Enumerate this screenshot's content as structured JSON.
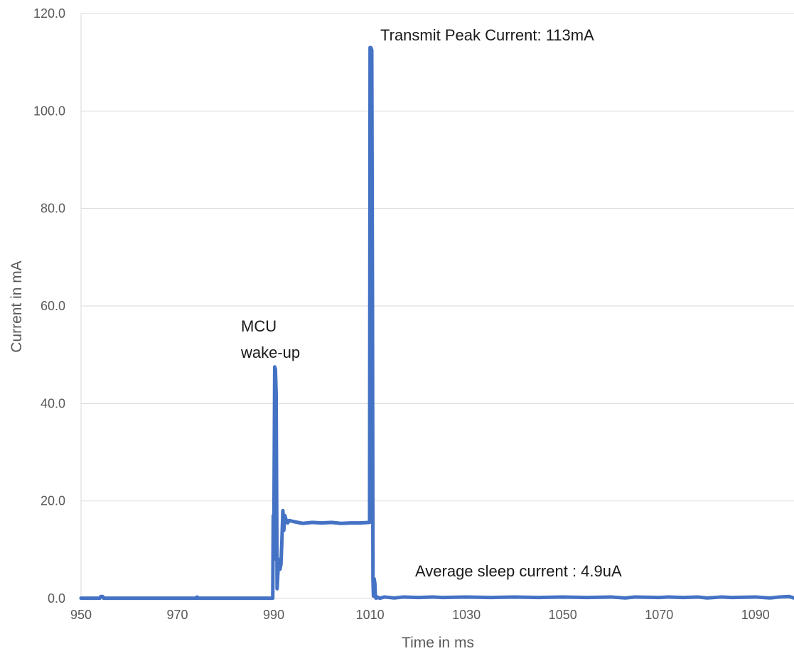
{
  "chart_data": {
    "type": "line",
    "xlabel": "Time in ms",
    "ylabel": "Current in mA",
    "xlim": [
      950,
      1098
    ],
    "ylim": [
      0,
      120
    ],
    "x_ticks": [
      950,
      970,
      990,
      1010,
      1030,
      1050,
      1070,
      1090
    ],
    "y_ticks": [
      "0.0",
      "20.0",
      "40.0",
      "60.0",
      "80.0",
      "100.0",
      "120.0"
    ],
    "y_tick_values": [
      0,
      20,
      40,
      60,
      80,
      100,
      120
    ],
    "grid": "horizontal",
    "series": [
      {
        "color": "#4472C4",
        "x": [
          950,
          953.9,
          954.1,
          954.5,
          954.7,
          973.9,
          974.1,
          974.3,
          989.8,
          989.9,
          990.0,
          990.2,
          990.35,
          990.5,
          990.7,
          990.9,
          991.1,
          991.3,
          991.5,
          991.7,
          991.9,
          992.1,
          992.3,
          992.6,
          992.9,
          993.2,
          994,
          996,
          998,
          1000,
          1002,
          1004,
          1006,
          1008,
          1009.9,
          1010.0,
          1010.15,
          1010.35,
          1010.5,
          1010.6,
          1010.7,
          1010.85,
          1011.0,
          1011.1,
          1011.25,
          1011.5,
          1012,
          1013,
          1015,
          1017,
          1020,
          1023,
          1025,
          1030,
          1035,
          1040,
          1045,
          1050,
          1055,
          1060,
          1063,
          1065,
          1070,
          1072,
          1075,
          1078,
          1080,
          1083,
          1085,
          1090,
          1093,
          1095,
          1097,
          1098
        ],
        "y": [
          0.05,
          0.05,
          0.4,
          0.4,
          0.05,
          0.05,
          0.3,
          0.05,
          0.05,
          17,
          8,
          47.5,
          47,
          42,
          2,
          6,
          8,
          6,
          7,
          12,
          18,
          14,
          17,
          16,
          15.5,
          16,
          15.8,
          15.4,
          15.6,
          15.5,
          15.6,
          15.4,
          15.5,
          15.5,
          15.6,
          113,
          113,
          112.5,
          60,
          4,
          0.5,
          4,
          3,
          0.3,
          0.05,
          0.3,
          0.05,
          0.3,
          0.1,
          0.3,
          0.2,
          0.3,
          0.2,
          0.3,
          0.2,
          0.3,
          0.2,
          0.3,
          0.2,
          0.3,
          0.1,
          0.3,
          0.2,
          0.3,
          0.2,
          0.3,
          0.1,
          0.3,
          0.2,
          0.3,
          0.1,
          0.3,
          0.4,
          0.1
        ]
      }
    ],
    "annotations": [
      {
        "text": "Transmit Peak Current: 113mA"
      },
      {
        "text": "MCU"
      },
      {
        "text": "wake-up"
      },
      {
        "text": "Average sleep current : 4.9uA"
      }
    ]
  }
}
